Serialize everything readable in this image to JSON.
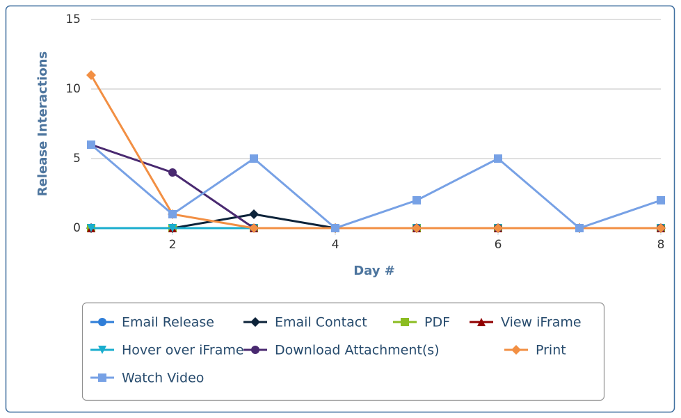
{
  "chart_data": {
    "type": "line",
    "x_label": "Day #",
    "y_label": "Release Interactions",
    "x": [
      1,
      2,
      3,
      4,
      5,
      6,
      7,
      8
    ],
    "series": [
      {
        "name": "Email Release",
        "color": "#2f7ed8",
        "symbol": "circle",
        "values": [
          0,
          0,
          0,
          0,
          0,
          0,
          0,
          0
        ]
      },
      {
        "name": "Email Contact",
        "color": "#0d233a",
        "symbol": "diamond",
        "values": [
          0,
          0,
          1,
          0,
          0,
          0,
          0,
          0
        ]
      },
      {
        "name": "PDF",
        "color": "#8bbc21",
        "symbol": "square",
        "values": [
          0,
          0,
          0,
          0,
          0,
          0,
          0,
          0
        ]
      },
      {
        "name": "View iFrame",
        "color": "#910000",
        "symbol": "triangle",
        "values": [
          0,
          0,
          0,
          0,
          0,
          0,
          0,
          0
        ]
      },
      {
        "name": "Hover over iFrame",
        "color": "#1aadce",
        "symbol": "triangle-down",
        "values": [
          0,
          0,
          0,
          0,
          0,
          0,
          0,
          0
        ]
      },
      {
        "name": "Download Attachment(s)",
        "color": "#492970",
        "symbol": "circle",
        "values": [
          6,
          4,
          0,
          0,
          0,
          0,
          0,
          0
        ]
      },
      {
        "name": "Print",
        "color": "#f28f43",
        "symbol": "diamond",
        "values": [
          11,
          1,
          0,
          0,
          0,
          0,
          0,
          0
        ]
      },
      {
        "name": "Watch Video",
        "color": "#77a1e5",
        "symbol": "square",
        "values": [
          6,
          1,
          5,
          0,
          2,
          5,
          0,
          2
        ]
      }
    ],
    "xlim": [
      1,
      8
    ],
    "xticks": [
      2,
      4,
      6,
      8
    ],
    "ylim": [
      0,
      15
    ],
    "yticks": [
      0,
      5,
      10,
      15
    ],
    "grid": true
  }
}
